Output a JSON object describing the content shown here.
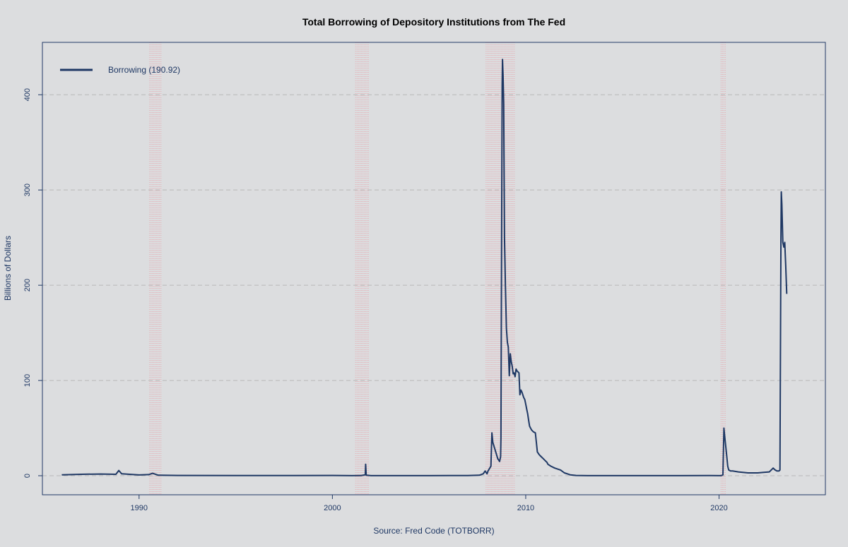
{
  "chart_data": {
    "type": "line",
    "title": "Total Borrowing of Depository Institutions from The Fed",
    "xlabel": "Source: Fred Code (TOTBORR)",
    "ylabel": "Billions of Dollars",
    "xlim": [
      1985,
      2025.5
    ],
    "ylim": [
      -20,
      455
    ],
    "x_ticks": [
      1990,
      2000,
      2010,
      2020
    ],
    "y_ticks": [
      0,
      100,
      200,
      300,
      400
    ],
    "grid": "horizontal-dashed",
    "legend_position": "top-left",
    "colors": {
      "line": "#1f3864",
      "recession": "#e8a0a8",
      "grid": "#b8b8b8",
      "frame": "#1f3864"
    },
    "recessions": [
      {
        "start": 1990.55,
        "end": 1991.2
      },
      {
        "start": 2001.2,
        "end": 2001.9
      },
      {
        "start": 2007.95,
        "end": 2009.45
      },
      {
        "start": 2020.1,
        "end": 2020.35
      }
    ],
    "series": [
      {
        "name": "Borrowing (190.92)",
        "x": [
          1986.0,
          1987.0,
          1988.0,
          1988.8,
          1988.95,
          1989.1,
          1989.5,
          1990.0,
          1990.5,
          1990.7,
          1991.0,
          1992.0,
          1995.0,
          1998.0,
          2000.0,
          2001.0,
          2001.5,
          2001.7,
          2001.72,
          2001.75,
          2002.0,
          2005.0,
          2007.0,
          2007.6,
          2007.8,
          2007.9,
          2008.0,
          2008.05,
          2008.2,
          2008.25,
          2008.3,
          2008.45,
          2008.55,
          2008.65,
          2008.7,
          2008.72,
          2008.74,
          2008.78,
          2008.8,
          2008.83,
          2008.86,
          2008.9,
          2008.95,
          2009.0,
          2009.05,
          2009.1,
          2009.15,
          2009.2,
          2009.25,
          2009.3,
          2009.35,
          2009.4,
          2009.45,
          2009.5,
          2009.55,
          2009.6,
          2009.65,
          2009.7,
          2009.75,
          2009.8,
          2009.85,
          2009.9,
          2009.95,
          2010.0,
          2010.05,
          2010.1,
          2010.15,
          2010.2,
          2010.3,
          2010.4,
          2010.5,
          2010.6,
          2010.7,
          2010.8,
          2010.9,
          2011.0,
          2011.1,
          2011.15,
          2011.3,
          2011.5,
          2011.8,
          2012.0,
          2012.3,
          2012.6,
          2012.9,
          2013.2,
          2014.0,
          2016.0,
          2018.0,
          2019.5,
          2020.1,
          2020.2,
          2020.25,
          2020.3,
          2020.35,
          2020.4,
          2020.45,
          2020.5,
          2020.6,
          2020.7,
          2021.0,
          2021.5,
          2022.0,
          2022.3,
          2022.6,
          2022.8,
          2022.9,
          2023.0,
          2023.1,
          2023.15,
          2023.18,
          2023.2,
          2023.22,
          2023.25,
          2023.3,
          2023.35,
          2023.4,
          2023.45,
          2023.5
        ],
        "y": [
          1.0,
          1.5,
          1.8,
          1.5,
          5.5,
          2.0,
          1.5,
          0.8,
          1.2,
          2.5,
          0.5,
          0.3,
          0.2,
          0.2,
          0.3,
          0.1,
          0.2,
          1.0,
          12.0,
          0.5,
          0.1,
          0.1,
          0.2,
          0.5,
          2.0,
          5.0,
          2.0,
          5.0,
          10.0,
          45.0,
          35.0,
          25.0,
          18.0,
          15.0,
          20.0,
          40.0,
          180.0,
          410.0,
          437.0,
          420.0,
          390.0,
          250.0,
          200.0,
          155.0,
          140.0,
          135.0,
          105.0,
          128.0,
          120.0,
          115.0,
          107.0,
          108.0,
          104.0,
          112.0,
          110.0,
          109.0,
          108.0,
          85.0,
          90.0,
          88.0,
          85.0,
          82.0,
          80.0,
          75.0,
          70.0,
          65.0,
          58.0,
          52.0,
          48.0,
          46.0,
          45.0,
          25.0,
          22.0,
          20.0,
          18.0,
          16.0,
          14.0,
          12.0,
          10.0,
          8.0,
          6.0,
          3.0,
          1.0,
          0.3,
          0.2,
          0.1,
          0.1,
          0.1,
          0.1,
          0.2,
          0.1,
          1.0,
          50.0,
          40.0,
          30.0,
          20.0,
          10.0,
          6.0,
          5.0,
          5.0,
          4.0,
          3.0,
          3.0,
          3.5,
          4.0,
          8.0,
          6.0,
          5.0,
          5.0,
          6.0,
          145.0,
          250.0,
          298.0,
          285.0,
          245.0,
          240.0,
          245.0,
          220.0,
          190.92
        ]
      }
    ]
  }
}
